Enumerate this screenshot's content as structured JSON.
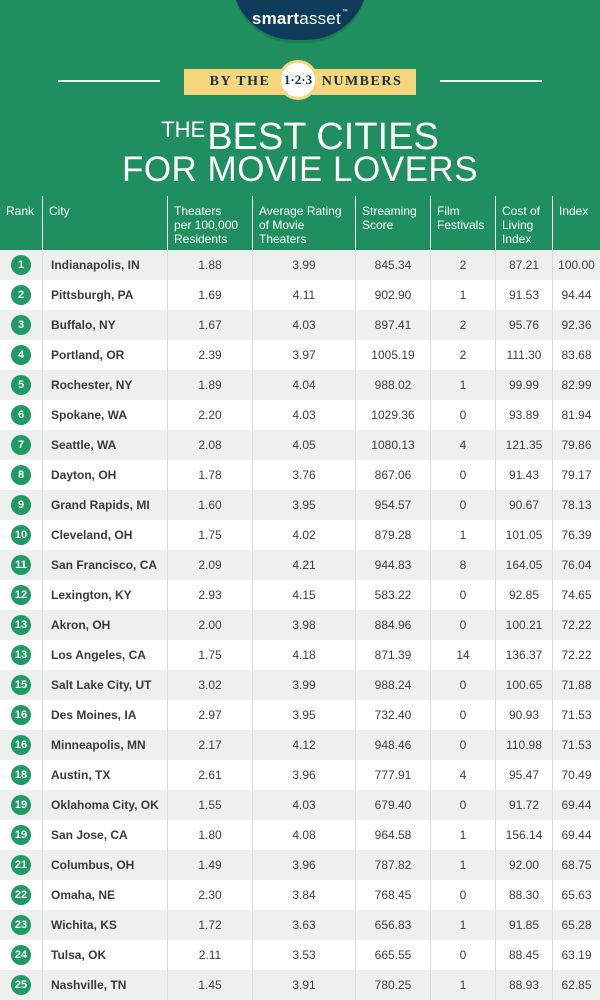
{
  "brand": {
    "name_bold": "smart",
    "name_regular": "asset",
    "trademark": "™"
  },
  "banner": {
    "left": "BY THE",
    "badge": "1·2·3",
    "right": "NUMBERS"
  },
  "title": {
    "line1_small": "THE",
    "line1": "BEST CITIES",
    "line2": "FOR MOVIE LOVERS"
  },
  "colors": {
    "header_green": "#1f8f5f",
    "rank_circle": "#1f9a63",
    "banner_gold": "#f6d57d",
    "logo_navy": "#0e3b5a"
  },
  "chart_data": {
    "type": "table",
    "title": "THE BEST CITIES FOR MOVIE LOVERS",
    "columns": [
      "Rank",
      "City",
      "Theaters per 100,000 Residents",
      "Average Rating of Movie Theaters",
      "Streaming Score",
      "Film Festivals",
      "Cost of Living Index",
      "Index"
    ],
    "rows": [
      [
        "1",
        "Indianapolis, IN",
        "1.88",
        "3.99",
        "845.34",
        "2",
        "87.21",
        "100.00"
      ],
      [
        "2",
        "Pittsburgh, PA",
        "1.69",
        "4.11",
        "902.90",
        "1",
        "91.53",
        "94.44"
      ],
      [
        "3",
        "Buffalo, NY",
        "1.67",
        "4.03",
        "897.41",
        "2",
        "95.76",
        "92.36"
      ],
      [
        "4",
        "Portland, OR",
        "2.39",
        "3.97",
        "1005.19",
        "2",
        "111.30",
        "83.68"
      ],
      [
        "5",
        "Rochester, NY",
        "1.89",
        "4.04",
        "988.02",
        "1",
        "99.99",
        "82.99"
      ],
      [
        "6",
        "Spokane, WA",
        "2.20",
        "4.03",
        "1029.36",
        "0",
        "93.89",
        "81.94"
      ],
      [
        "7",
        "Seattle, WA",
        "2.08",
        "4.05",
        "1080.13",
        "4",
        "121.35",
        "79.86"
      ],
      [
        "8",
        "Dayton, OH",
        "1.78",
        "3.76",
        "867.06",
        "0",
        "91.43",
        "79.17"
      ],
      [
        "9",
        "Grand Rapids, MI",
        "1.60",
        "3.95",
        "954.57",
        "0",
        "90.67",
        "78.13"
      ],
      [
        "10",
        "Cleveland, OH",
        "1.75",
        "4.02",
        "879.28",
        "1",
        "101.05",
        "76.39"
      ],
      [
        "11",
        "San Francisco, CA",
        "2.09",
        "4.21",
        "944.83",
        "8",
        "164.05",
        "76.04"
      ],
      [
        "12",
        "Lexington, KY",
        "2.93",
        "4.15",
        "583.22",
        "0",
        "92.85",
        "74.65"
      ],
      [
        "13",
        "Akron, OH",
        "2.00",
        "3.98",
        "884.96",
        "0",
        "100.21",
        "72.22"
      ],
      [
        "13",
        "Los Angeles, CA",
        "1.75",
        "4.18",
        "871.39",
        "14",
        "136.37",
        "72.22"
      ],
      [
        "15",
        "Salt Lake City, UT",
        "3.02",
        "3.99",
        "988.24",
        "0",
        "100.65",
        "71.88"
      ],
      [
        "16",
        "Des Moines, IA",
        "2.97",
        "3.95",
        "732.40",
        "0",
        "90.93",
        "71.53"
      ],
      [
        "16",
        "Minneapolis, MN",
        "2.17",
        "4.12",
        "948.46",
        "0",
        "110.98",
        "71.53"
      ],
      [
        "18",
        "Austin, TX",
        "2.61",
        "3.96",
        "777.91",
        "4",
        "95.47",
        "70.49"
      ],
      [
        "19",
        "Oklahoma City, OK",
        "1.55",
        "4.03",
        "679.40",
        "0",
        "91.72",
        "69.44"
      ],
      [
        "19",
        "San Jose, CA",
        "1.80",
        "4.08",
        "964.58",
        "1",
        "156.14",
        "69.44"
      ],
      [
        "21",
        "Columbus, OH",
        "1.49",
        "3.96",
        "787.82",
        "1",
        "92.00",
        "68.75"
      ],
      [
        "22",
        "Omaha, NE",
        "2.30",
        "3.84",
        "768.45",
        "0",
        "88.30",
        "65.63"
      ],
      [
        "23",
        "Wichita, KS",
        "1.72",
        "3.63",
        "656.83",
        "1",
        "91.85",
        "65.28"
      ],
      [
        "24",
        "Tulsa, OK",
        "2.11",
        "3.53",
        "665.55",
        "0",
        "88.45",
        "63.19"
      ],
      [
        "25",
        "Nashville, TN",
        "1.45",
        "3.91",
        "780.25",
        "1",
        "88.93",
        "62.85"
      ]
    ]
  }
}
